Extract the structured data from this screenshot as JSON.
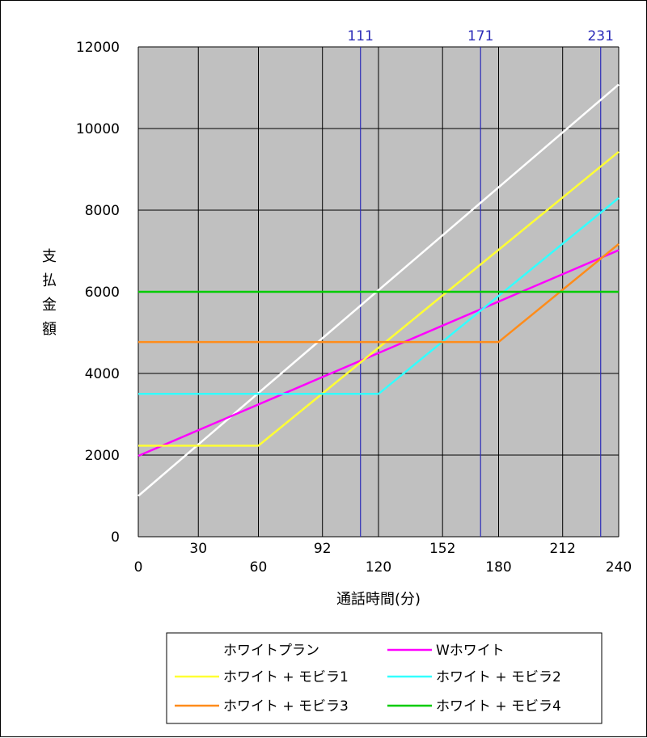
{
  "chart_data": {
    "type": "line",
    "xlabel": "通話時間(分)",
    "ylabel": "支払金額",
    "xlim": [
      0,
      240
    ],
    "ylim": [
      0,
      12000
    ],
    "yticks": [
      0,
      2000,
      4000,
      6000,
      8000,
      10000,
      12000
    ],
    "xticks_lower": [
      0,
      60,
      120,
      180,
      240
    ],
    "xticks_upper": [
      30,
      92,
      152,
      212
    ],
    "top_markers": [
      111,
      171,
      231
    ],
    "grid": true,
    "plot_background": "#c0c0c0",
    "marker_line_color": "#2b2bb8",
    "legend_position": "bottom",
    "series": [
      {
        "name": "ホワイトプラン",
        "color": "#ffffff",
        "x": [
          0,
          240
        ],
        "y": [
          1000,
          11080
        ]
      },
      {
        "name": "Wホワイト",
        "color": "#ff00ff",
        "x": [
          0,
          240
        ],
        "y": [
          1980,
          7020
        ]
      },
      {
        "name": "ホワイト + モビラ1",
        "color": "#ffff33",
        "x": [
          0,
          60,
          240
        ],
        "y": [
          2230,
          2230,
          9430
        ]
      },
      {
        "name": "ホワイト + モビラ2",
        "color": "#33ffff",
        "x": [
          0,
          120,
          240
        ],
        "y": [
          3500,
          3500,
          8300
        ]
      },
      {
        "name": "ホワイト + モビラ3",
        "color": "#ff8c1a",
        "x": [
          0,
          180,
          240
        ],
        "y": [
          4770,
          4770,
          7170
        ]
      },
      {
        "name": "ホワイト + モビラ4",
        "color": "#00cc00",
        "x": [
          0,
          240
        ],
        "y": [
          6000,
          6000
        ]
      }
    ]
  }
}
